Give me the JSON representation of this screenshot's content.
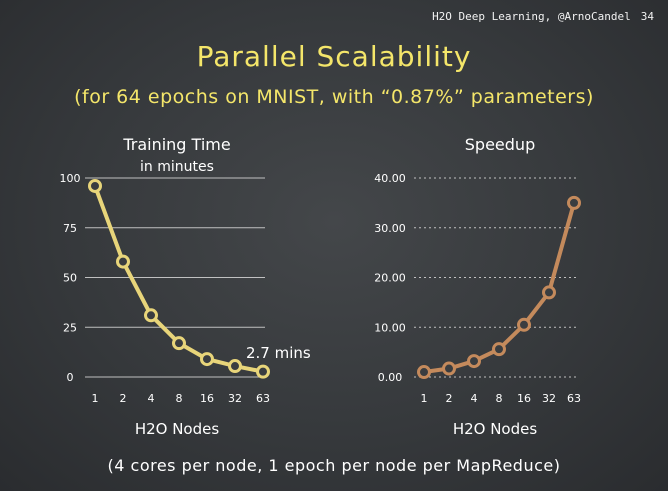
{
  "header": {
    "text": "H2O Deep Learning, @ArnoCandel",
    "page": "34"
  },
  "title": "Parallel Scalability",
  "subtitle": "(for 64 epochs on MNIST, with “0.87%” parameters)",
  "footer": "(4 cores per node, 1 epoch per node per MapReduce)",
  "colors": {
    "accent": "#f4e66a",
    "line1": "#e8d57a",
    "line2": "#c48a5c"
  },
  "chart_data": [
    {
      "type": "line",
      "title": "Training Time",
      "subtitle": "in minutes",
      "xlabel": "H2O Nodes",
      "ylabel": "",
      "categories": [
        "1",
        "2",
        "4",
        "8",
        "16",
        "32",
        "63"
      ],
      "series": [
        {
          "values": [
            96,
            58,
            31,
            17,
            9,
            5.5,
            2.7
          ]
        }
      ],
      "ylim": [
        0,
        100
      ],
      "yticks": [
        "0",
        "25",
        "50",
        "75",
        "100"
      ],
      "annotation": "2.7 mins",
      "grid": true,
      "grid_style": "solid"
    },
    {
      "type": "line",
      "title": "Speedup",
      "xlabel": "H2O Nodes",
      "ylabel": "",
      "categories": [
        "1",
        "2",
        "4",
        "8",
        "16",
        "32",
        "63"
      ],
      "series": [
        {
          "values": [
            1,
            1.7,
            3.2,
            5.6,
            10.5,
            17,
            35
          ]
        }
      ],
      "ylim": [
        0,
        40
      ],
      "yticks": [
        "0.00",
        "10.00",
        "20.00",
        "30.00",
        "40.00"
      ],
      "grid": true,
      "grid_style": "dotted"
    }
  ]
}
